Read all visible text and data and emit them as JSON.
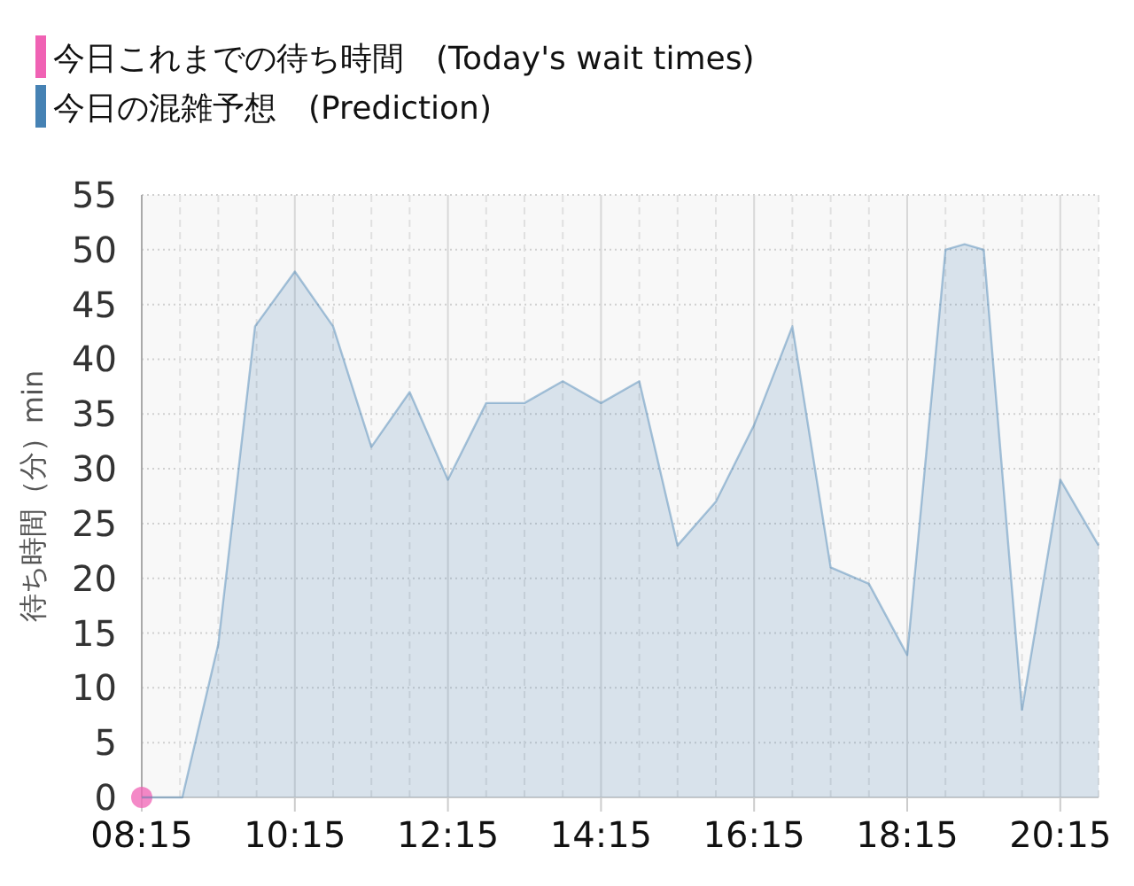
{
  "chart_data": {
    "type": "area",
    "ylabel": "待ち時間（分）min",
    "legend": "top left",
    "grid": true,
    "xlim": [
      8.25,
      20.75
    ],
    "ylim": [
      0,
      55
    ],
    "yticks": [
      0,
      5,
      10,
      15,
      20,
      25,
      30,
      35,
      40,
      45,
      50,
      55
    ],
    "xticks": [
      {
        "value": 8.25,
        "label": "08:15"
      },
      {
        "value": 8.75,
        "label": null
      },
      {
        "value": 9.25,
        "label": null
      },
      {
        "value": 9.75,
        "label": null
      },
      {
        "value": 10.25,
        "label": "10:15"
      },
      {
        "value": 10.75,
        "label": null
      },
      {
        "value": 11.25,
        "label": null
      },
      {
        "value": 11.75,
        "label": null
      },
      {
        "value": 12.25,
        "label": "12:15"
      },
      {
        "value": 12.75,
        "label": null
      },
      {
        "value": 13.25,
        "label": null
      },
      {
        "value": 13.75,
        "label": null
      },
      {
        "value": 14.25,
        "label": "14:15"
      },
      {
        "value": 14.75,
        "label": null
      },
      {
        "value": 15.25,
        "label": null
      },
      {
        "value": 15.75,
        "label": null
      },
      {
        "value": 16.25,
        "label": "16:15"
      },
      {
        "value": 16.75,
        "label": null
      },
      {
        "value": 17.25,
        "label": null
      },
      {
        "value": 17.75,
        "label": null
      },
      {
        "value": 18.25,
        "label": "18:15"
      },
      {
        "value": 18.75,
        "label": null
      },
      {
        "value": 19.25,
        "label": null
      },
      {
        "value": 19.75,
        "label": null
      },
      {
        "value": 20.25,
        "label": "20:15"
      },
      {
        "value": 20.75,
        "label": null
      }
    ],
    "series": [
      {
        "name": "今日これまでの待ち時間　(Today's wait times)",
        "type": "scatter",
        "marker": "circle",
        "color": "#f062b4",
        "x": [
          8.25
        ],
        "values": [
          0
        ]
      },
      {
        "name": "今日の混雑予想　(Prediction)",
        "color": "#4682b4",
        "x": [
          8.25,
          8.6,
          8.78,
          9.25,
          9.73,
          10.25,
          10.75,
          11.25,
          11.75,
          12.25,
          12.75,
          13.25,
          13.75,
          14.25,
          14.75,
          15.25,
          15.75,
          16.25,
          16.75,
          17.25,
          17.75,
          18.25,
          18.75,
          19.0,
          19.25,
          19.75,
          20.25,
          20.75
        ],
        "values": [
          0,
          0,
          0,
          14,
          43,
          48,
          43,
          32,
          37,
          29,
          36,
          36,
          38,
          36,
          38,
          23,
          27,
          34,
          43,
          21,
          19.5,
          13,
          50,
          50.5,
          50,
          8,
          29,
          23
        ]
      }
    ]
  }
}
